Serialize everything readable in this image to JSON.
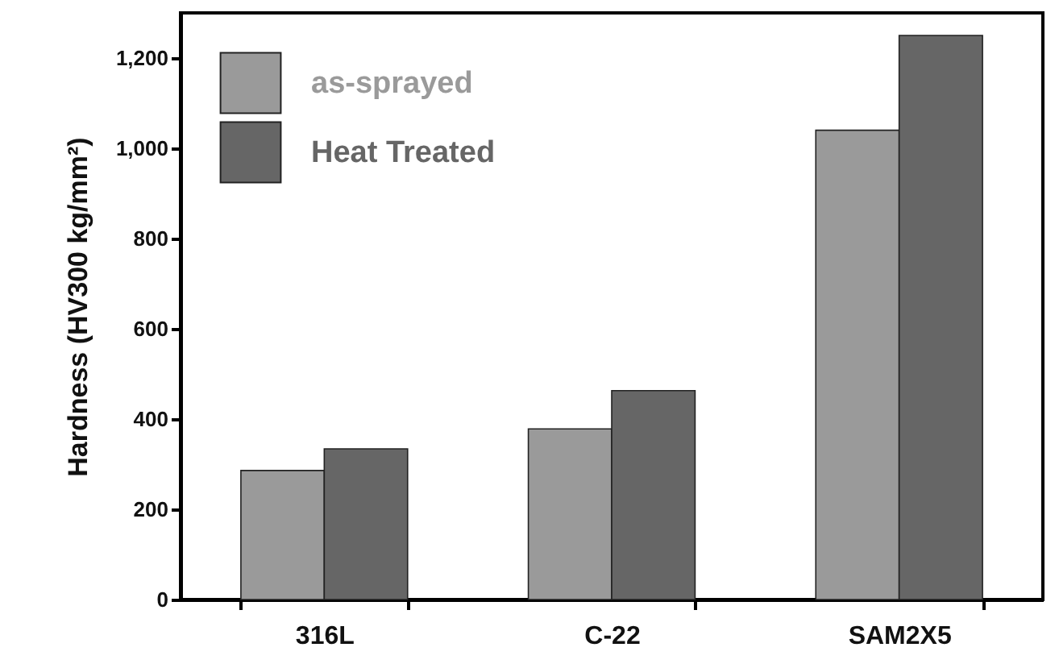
{
  "chart_data": {
    "type": "bar",
    "categories": [
      "316L",
      "C-22",
      "SAM2X5"
    ],
    "ylabel": "Hardness (HV300 kg/mm²)",
    "series": [
      {
        "name": "as-sprayed",
        "color": "#9a9a9a",
        "values": [
          286,
          378,
          1040
        ]
      },
      {
        "name": "Heat Treated",
        "color": "#666666",
        "values": [
          334,
          463,
          1250
        ]
      }
    ],
    "ylim": [
      0,
      1300
    ],
    "yticks": [
      0,
      {
        "value": 200,
        "label": "200"
      },
      {
        "value": 400,
        "label": "400"
      },
      {
        "value": 600,
        "label": "600"
      },
      {
        "value": 800,
        "label": "800"
      },
      {
        "value": 1000,
        "label": "1,000"
      },
      {
        "value": 1200,
        "label": "1,200"
      }
    ],
    "grid": false,
    "legend": "top left"
  }
}
